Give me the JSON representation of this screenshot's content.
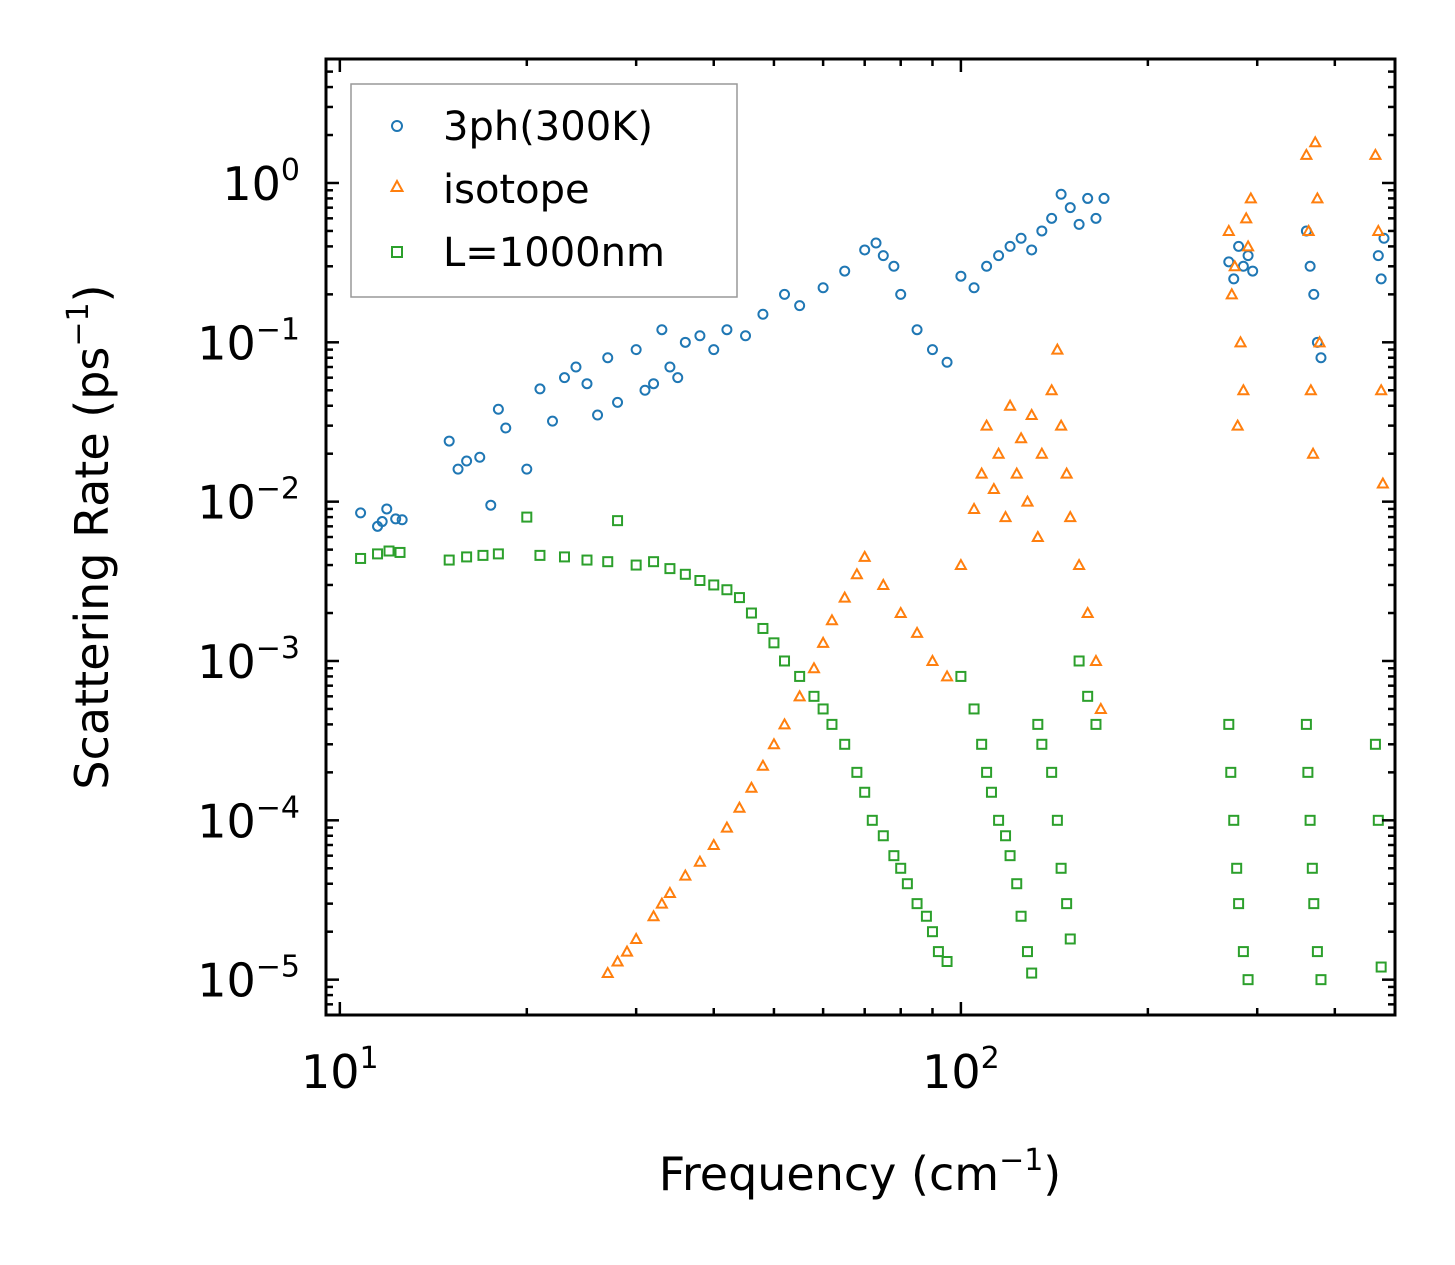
{
  "chart_data": {
    "type": "scatter",
    "title": "",
    "xlabel": "Frequency (cm",
    "xlabel_sup": "−1",
    "xlabel_end": ")",
    "ylabel": "Scattering Rate (ps",
    "ylabel_sup": "−1",
    "ylabel_end": ")",
    "xscale": "log",
    "yscale": "log",
    "xlim": [
      9.5,
      500
    ],
    "ylim": [
      6e-06,
      6
    ],
    "x_ticks": [
      {
        "base": "10",
        "exp": "1",
        "value": 10
      },
      {
        "base": "10",
        "exp": "2",
        "value": 100
      }
    ],
    "y_ticks": [
      {
        "base": "10",
        "exp": "0",
        "value": 1
      },
      {
        "base": "10",
        "exp": "−1",
        "value": 0.1
      },
      {
        "base": "10",
        "exp": "−2",
        "value": 0.01
      },
      {
        "base": "10",
        "exp": "−3",
        "value": 0.001
      },
      {
        "base": "10",
        "exp": "−4",
        "value": 0.0001
      },
      {
        "base": "10",
        "exp": "−5",
        "value": 1e-05
      }
    ],
    "legend_position": "top-left",
    "series": [
      {
        "name": "3ph(300K)",
        "color": "#1f77b4",
        "marker": "circle",
        "x": [
          10.8,
          11.5,
          11.7,
          11.9,
          12.3,
          12.6,
          15,
          15.5,
          16,
          16.8,
          17.5,
          18,
          18.5,
          20,
          21,
          22,
          23,
          24,
          25,
          26,
          27,
          28,
          30,
          31,
          32,
          33,
          34,
          35,
          36,
          38,
          40,
          42,
          45,
          48,
          52,
          55,
          60,
          65,
          70,
          73,
          75,
          78,
          80,
          85,
          90,
          95,
          100,
          105,
          110,
          115,
          120,
          125,
          130,
          135,
          140,
          145,
          150,
          155,
          160,
          165,
          170,
          270,
          275,
          280,
          285,
          290,
          295,
          360,
          365,
          370,
          375,
          380,
          470,
          475,
          480
        ],
        "values": [
          0.0085,
          0.007,
          0.0075,
          0.009,
          0.0078,
          0.0077,
          0.024,
          0.016,
          0.018,
          0.019,
          0.0095,
          0.038,
          0.029,
          0.016,
          0.051,
          0.032,
          0.06,
          0.07,
          0.055,
          0.035,
          0.08,
          0.042,
          0.09,
          0.05,
          0.055,
          0.12,
          0.07,
          0.06,
          0.1,
          0.11,
          0.09,
          0.12,
          0.11,
          0.15,
          0.2,
          0.17,
          0.22,
          0.28,
          0.38,
          0.42,
          0.35,
          0.3,
          0.2,
          0.12,
          0.09,
          0.075,
          0.26,
          0.22,
          0.3,
          0.35,
          0.4,
          0.45,
          0.38,
          0.5,
          0.6,
          0.85,
          0.7,
          0.55,
          0.8,
          0.6,
          0.8,
          0.32,
          0.25,
          0.4,
          0.3,
          0.35,
          0.28,
          0.5,
          0.3,
          0.2,
          0.1,
          0.08,
          0.35,
          0.25,
          0.45
        ]
      },
      {
        "name": "isotope",
        "color": "#ff7f0e",
        "marker": "triangle",
        "x": [
          27,
          28,
          29,
          30,
          32,
          33,
          34,
          36,
          38,
          40,
          42,
          44,
          46,
          48,
          50,
          52,
          55,
          58,
          60,
          62,
          65,
          68,
          70,
          75,
          80,
          85,
          90,
          95,
          100,
          105,
          108,
          110,
          113,
          115,
          118,
          120,
          123,
          125,
          128,
          130,
          133,
          135,
          140,
          143,
          145,
          148,
          150,
          155,
          160,
          165,
          168,
          270,
          273,
          276,
          279,
          282,
          285,
          288,
          290,
          293,
          360,
          363,
          366,
          369,
          372,
          375,
          378,
          465,
          470,
          475,
          478
        ],
        "values": [
          1.1e-05,
          1.3e-05,
          1.5e-05,
          1.8e-05,
          2.5e-05,
          3e-05,
          3.5e-05,
          4.5e-05,
          5.5e-05,
          7e-05,
          9e-05,
          0.00012,
          0.00016,
          0.00022,
          0.0003,
          0.0004,
          0.0006,
          0.0009,
          0.0013,
          0.0018,
          0.0025,
          0.0035,
          0.0045,
          0.003,
          0.002,
          0.0015,
          0.001,
          0.0008,
          0.004,
          0.009,
          0.015,
          0.03,
          0.012,
          0.02,
          0.008,
          0.04,
          0.015,
          0.025,
          0.01,
          0.035,
          0.006,
          0.02,
          0.05,
          0.09,
          0.03,
          0.015,
          0.008,
          0.004,
          0.002,
          0.001,
          0.0005,
          0.5,
          0.2,
          0.3,
          0.03,
          0.1,
          0.05,
          0.6,
          0.4,
          0.8,
          1.5,
          0.5,
          0.05,
          0.02,
          1.8,
          0.8,
          0.1,
          1.5,
          0.5,
          0.05,
          0.013
        ]
      },
      {
        "name": "L=1000nm",
        "color": "#2ca02c",
        "marker": "square",
        "x": [
          10.8,
          11.5,
          12,
          12.5,
          15,
          16,
          17,
          18,
          20,
          21,
          23,
          25,
          27,
          28,
          30,
          32,
          34,
          36,
          38,
          40,
          42,
          44,
          46,
          48,
          50,
          52,
          55,
          58,
          60,
          62,
          65,
          68,
          70,
          72,
          75,
          78,
          80,
          82,
          85,
          88,
          90,
          92,
          95,
          100,
          105,
          108,
          110,
          112,
          115,
          118,
          120,
          123,
          125,
          128,
          130,
          133,
          135,
          140,
          143,
          145,
          148,
          150,
          155,
          160,
          165,
          270,
          272,
          275,
          278,
          280,
          285,
          290,
          360,
          362,
          365,
          368,
          370,
          375,
          380,
          465,
          470,
          475
        ],
        "values": [
          0.0044,
          0.0047,
          0.0049,
          0.0048,
          0.0043,
          0.0045,
          0.0046,
          0.0047,
          0.008,
          0.0046,
          0.0045,
          0.0043,
          0.0042,
          0.0076,
          0.004,
          0.0042,
          0.0038,
          0.0035,
          0.0032,
          0.003,
          0.0028,
          0.0025,
          0.002,
          0.0016,
          0.0013,
          0.001,
          0.0008,
          0.0006,
          0.0005,
          0.0004,
          0.0003,
          0.0002,
          0.00015,
          0.0001,
          8e-05,
          6e-05,
          5e-05,
          4e-05,
          3e-05,
          2.5e-05,
          2e-05,
          1.5e-05,
          1.3e-05,
          0.0008,
          0.0005,
          0.0003,
          0.0002,
          0.00015,
          0.0001,
          8e-05,
          6e-05,
          4e-05,
          2.5e-05,
          1.5e-05,
          1.1e-05,
          0.0004,
          0.0003,
          0.0002,
          0.0001,
          5e-05,
          3e-05,
          1.8e-05,
          0.001,
          0.0006,
          0.0004,
          0.0004,
          0.0002,
          0.0001,
          5e-05,
          3e-05,
          1.5e-05,
          1e-05,
          0.0004,
          0.0002,
          0.0001,
          5e-05,
          3e-05,
          1.5e-05,
          1e-05,
          0.0003,
          0.0001,
          1.2e-05
        ]
      }
    ]
  }
}
